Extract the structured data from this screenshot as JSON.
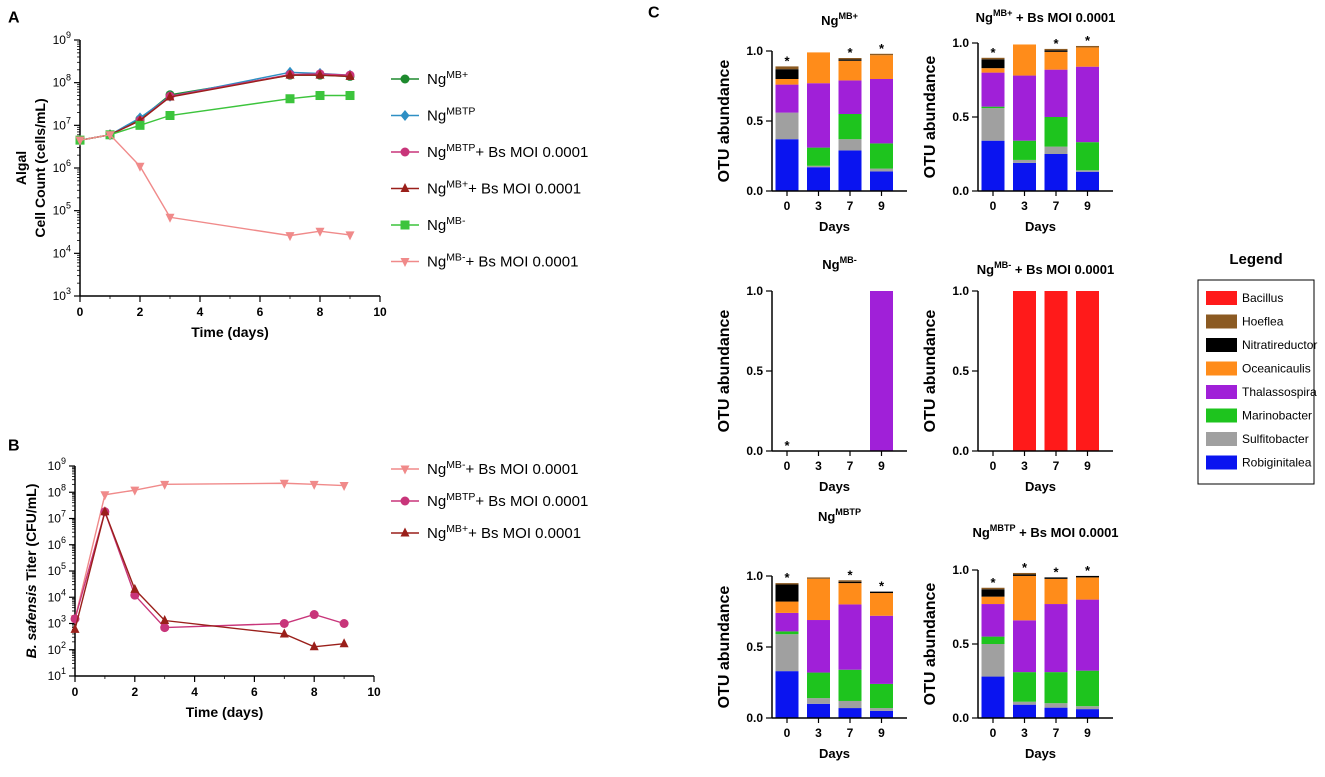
{
  "chart_data": [
    {
      "id": "A",
      "panel_label": "A",
      "type": "line",
      "ylabel_line1": "Algal",
      "ylabel_line2": "Cell Count (cells/mL)",
      "xlabel": "Time (days)",
      "yscale": "log",
      "ylim": [
        1000,
        1000000000
      ],
      "xlim": [
        0,
        10
      ],
      "xticks": [
        "0",
        "2",
        "4",
        "6",
        "8",
        "10"
      ],
      "yticks": [
        {
          "base": "10",
          "exp": "3"
        },
        {
          "base": "10",
          "exp": "4"
        },
        {
          "base": "10",
          "exp": "5"
        },
        {
          "base": "10",
          "exp": "6"
        },
        {
          "base": "10",
          "exp": "7"
        },
        {
          "base": "10",
          "exp": "8"
        },
        {
          "base": "10",
          "exp": "9"
        }
      ],
      "series": [
        {
          "name": "NgMB+",
          "label": "Ng",
          "sup": "MB+",
          "suffix": "",
          "color": "#1e8a2e",
          "marker": "circle",
          "x": [
            0,
            1,
            2,
            3,
            7,
            8,
            9
          ],
          "values": [
            4500000,
            6000000,
            14000000,
            52000000,
            150000000,
            150000000,
            140000000
          ]
        },
        {
          "name": "NgMBTP",
          "label": "Ng",
          "sup": "MBTP",
          "suffix": "",
          "color": "#2e8fc4",
          "marker": "diamond",
          "x": [
            0,
            1,
            2,
            3,
            7,
            8,
            9
          ],
          "values": [
            4500000,
            6000000,
            15000000,
            48000000,
            175000000,
            165000000,
            150000000
          ]
        },
        {
          "name": "NgMBTP+ Bs MOI 0.0001",
          "label": "Ng",
          "sup": "MBTP",
          "suffix": "+ Bs MOI 0.0001",
          "color": "#c8357a",
          "marker": "circle",
          "x": [
            0,
            1,
            2,
            3,
            7,
            8,
            9
          ],
          "values": [
            4500000,
            6000000,
            13000000,
            48000000,
            155000000,
            160000000,
            150000000
          ]
        },
        {
          "name": "NgMB++ Bs MOI 0.0001",
          "label": "Ng",
          "sup": "MB+",
          "suffix": "+ Bs MOI 0.0001",
          "color": "#9a1f1a",
          "marker": "triangle",
          "x": [
            0,
            1,
            2,
            3,
            7,
            8,
            9
          ],
          "values": [
            4500000,
            6000000,
            13000000,
            46000000,
            150000000,
            150000000,
            140000000
          ]
        },
        {
          "name": "NgMB-",
          "label": "Ng",
          "sup": "MB-",
          "suffix": "",
          "color": "#3cc43c",
          "marker": "square",
          "x": [
            0,
            1,
            2,
            3,
            7,
            8,
            9
          ],
          "values": [
            4500000,
            6000000,
            10000000,
            17000000,
            42000000,
            50000000,
            50000000
          ]
        },
        {
          "name": "NgMB-+ Bs MOI 0.0001",
          "label": "Ng",
          "sup": "MB-",
          "suffix": "+ Bs MOI 0.0001",
          "color": "#f08a8a",
          "marker": "triangle-down",
          "x": [
            0,
            1,
            2,
            3,
            7,
            8,
            9
          ],
          "values": [
            4500000,
            6000000,
            1100000,
            70000,
            26000,
            33000,
            27000
          ]
        }
      ]
    },
    {
      "id": "B",
      "panel_label": "B",
      "type": "line",
      "ylabel_italic": "B. safensis",
      "ylabel_rest": " Titer (CFU/mL)",
      "xlabel": "Time (days)",
      "yscale": "log",
      "ylim": [
        10,
        1000000000
      ],
      "xlim": [
        0,
        10
      ],
      "xticks": [
        "0",
        "2",
        "4",
        "6",
        "8",
        "10"
      ],
      "yticks": [
        {
          "base": "10",
          "exp": "1"
        },
        {
          "base": "10",
          "exp": "2"
        },
        {
          "base": "10",
          "exp": "3"
        },
        {
          "base": "10",
          "exp": "4"
        },
        {
          "base": "10",
          "exp": "5"
        },
        {
          "base": "10",
          "exp": "6"
        },
        {
          "base": "10",
          "exp": "7"
        },
        {
          "base": "10",
          "exp": "8"
        },
        {
          "base": "10",
          "exp": "9"
        }
      ],
      "series": [
        {
          "name": "NgMB-+ Bs MOI 0.0001",
          "label": "Ng",
          "sup": "MB-",
          "suffix": "+ Bs MOI 0.0001",
          "color": "#f08a8a",
          "marker": "triangle-down",
          "x": [
            0,
            1,
            2,
            3,
            7,
            8,
            9
          ],
          "values": [
            1500,
            80000000,
            120000000,
            200000000,
            220000000,
            200000000,
            180000000
          ]
        },
        {
          "name": "NgMBTP+ Bs MOI 0.0001",
          "label": "Ng",
          "sup": "MBTP",
          "suffix": "+ Bs MOI 0.0001",
          "color": "#c8357a",
          "marker": "circle",
          "x": [
            0,
            1,
            2,
            3,
            7,
            8,
            9
          ],
          "values": [
            1500,
            18000000,
            12000,
            700,
            1000,
            2200,
            1000
          ]
        },
        {
          "name": "NgMB++ Bs MOI 0.0001",
          "label": "Ng",
          "sup": "MB+",
          "suffix": "+ Bs MOI 0.0001",
          "color": "#9a1f1a",
          "marker": "triangle",
          "x": [
            0,
            1,
            2,
            3,
            7,
            8,
            9
          ],
          "values": [
            600,
            18000000,
            20000,
            1300,
            400,
            130,
            170
          ]
        }
      ]
    },
    {
      "id": "C",
      "panel_label": "C",
      "type": "bar",
      "stacked": true,
      "ylabel": "OTU abundance",
      "xlabel": "Days",
      "categories": [
        "0",
        "3",
        "7",
        "9"
      ],
      "yticks": [
        "0.0",
        "0.5",
        "1.0"
      ],
      "ylim": [
        0,
        1
      ],
      "taxa": [
        "Robiginitalea",
        "Sulfitobacter",
        "Marinobacter",
        "Thalassospira",
        "Oceanicaulis",
        "Nitratireductor",
        "Hoeflea",
        "Bacillus"
      ],
      "colors": {
        "Bacillus": "#ff1a1a",
        "Hoeflea": "#8b5a22",
        "Nitratireductor": "#000000",
        "Oceanicaulis": "#ff8c1a",
        "Thalassospira": "#a020d8",
        "Marinobacter": "#1ec41e",
        "Sulfitobacter": "#a0a0a0",
        "Robiginitalea": "#0a14f0"
      },
      "legend": {
        "title": "Legend",
        "items": [
          "Bacillus",
          "Hoeflea",
          "Nitratireductor",
          "Oceanicaulis",
          "Thalassospira",
          "Marinobacter",
          "Sulfitobacter",
          "Robiginitalea"
        ]
      },
      "subplots": [
        {
          "key": "mbplus",
          "title_main": "Ng",
          "title_sup": "MB+",
          "title_suffix": "",
          "stars": [
            true,
            false,
            true,
            true
          ],
          "bars": [
            {
              "Robiginitalea": 0.37,
              "Sulfitobacter": 0.19,
              "Marinobacter": 0.0,
              "Thalassospira": 0.2,
              "Oceanicaulis": 0.04,
              "Nitratireductor": 0.07,
              "Hoeflea": 0.02,
              "Bacillus": 0.0
            },
            {
              "Robiginitalea": 0.17,
              "Sulfitobacter": 0.01,
              "Marinobacter": 0.13,
              "Thalassospira": 0.46,
              "Oceanicaulis": 0.22,
              "Nitratireductor": 0.0,
              "Hoeflea": 0.0,
              "Bacillus": 0.0
            },
            {
              "Robiginitalea": 0.29,
              "Sulfitobacter": 0.08,
              "Marinobacter": 0.18,
              "Thalassospira": 0.24,
              "Oceanicaulis": 0.14,
              "Nitratireductor": 0.01,
              "Hoeflea": 0.01,
              "Bacillus": 0.0
            },
            {
              "Robiginitalea": 0.14,
              "Sulfitobacter": 0.02,
              "Marinobacter": 0.18,
              "Thalassospira": 0.46,
              "Oceanicaulis": 0.17,
              "Nitratireductor": 0.0,
              "Hoeflea": 0.01,
              "Bacillus": 0.0
            }
          ]
        },
        {
          "key": "mbplus_bs",
          "title_main": "Ng",
          "title_sup": "MB+",
          "title_suffix": " + Bs MOI 0.0001",
          "stars": [
            true,
            false,
            true,
            true
          ],
          "bars": [
            {
              "Robiginitalea": 0.34,
              "Sulfitobacter": 0.22,
              "Marinobacter": 0.01,
              "Thalassospira": 0.23,
              "Oceanicaulis": 0.03,
              "Nitratireductor": 0.06,
              "Hoeflea": 0.01,
              "Bacillus": 0.0
            },
            {
              "Robiginitalea": 0.19,
              "Sulfitobacter": 0.02,
              "Marinobacter": 0.13,
              "Thalassospira": 0.44,
              "Oceanicaulis": 0.21,
              "Nitratireductor": 0.0,
              "Hoeflea": 0.0,
              "Bacillus": 0.0
            },
            {
              "Robiginitalea": 0.25,
              "Sulfitobacter": 0.05,
              "Marinobacter": 0.2,
              "Thalassospira": 0.32,
              "Oceanicaulis": 0.12,
              "Nitratireductor": 0.01,
              "Hoeflea": 0.01,
              "Bacillus": 0.0
            },
            {
              "Robiginitalea": 0.13,
              "Sulfitobacter": 0.01,
              "Marinobacter": 0.19,
              "Thalassospira": 0.51,
              "Oceanicaulis": 0.13,
              "Nitratireductor": 0.0,
              "Hoeflea": 0.01,
              "Bacillus": 0.0
            }
          ]
        },
        {
          "key": "mbminus",
          "title_main": "Ng",
          "title_sup": "MB-",
          "title_suffix": "",
          "stars": [
            true,
            false,
            false,
            false
          ],
          "bars": [
            {
              "Robiginitalea": 0,
              "Sulfitobacter": 0,
              "Marinobacter": 0,
              "Thalassospira": 0,
              "Oceanicaulis": 0,
              "Nitratireductor": 0,
              "Hoeflea": 0,
              "Bacillus": 0
            },
            {
              "Robiginitalea": 0,
              "Sulfitobacter": 0,
              "Marinobacter": 0,
              "Thalassospira": 0,
              "Oceanicaulis": 0,
              "Nitratireductor": 0,
              "Hoeflea": 0,
              "Bacillus": 0
            },
            {
              "Robiginitalea": 0,
              "Sulfitobacter": 0,
              "Marinobacter": 0,
              "Thalassospira": 0,
              "Oceanicaulis": 0,
              "Nitratireductor": 0,
              "Hoeflea": 0,
              "Bacillus": 0
            },
            {
              "Robiginitalea": 0,
              "Sulfitobacter": 0,
              "Marinobacter": 0,
              "Thalassospira": 1.0,
              "Oceanicaulis": 0,
              "Nitratireductor": 0,
              "Hoeflea": 0,
              "Bacillus": 0
            }
          ]
        },
        {
          "key": "mbminus_bs",
          "title_main": "Ng",
          "title_sup": "MB-",
          "title_suffix": " + Bs MOI 0.0001",
          "stars": [
            false,
            false,
            false,
            false
          ],
          "bars": [
            {
              "Robiginitalea": 0,
              "Sulfitobacter": 0,
              "Marinobacter": 0,
              "Thalassospira": 0,
              "Oceanicaulis": 0,
              "Nitratireductor": 0,
              "Hoeflea": 0,
              "Bacillus": 0
            },
            {
              "Robiginitalea": 0,
              "Sulfitobacter": 0,
              "Marinobacter": 0,
              "Thalassospira": 0,
              "Oceanicaulis": 0,
              "Nitratireductor": 0,
              "Hoeflea": 0,
              "Bacillus": 1.0
            },
            {
              "Robiginitalea": 0,
              "Sulfitobacter": 0,
              "Marinobacter": 0,
              "Thalassospira": 0,
              "Oceanicaulis": 0,
              "Nitratireductor": 0,
              "Hoeflea": 0,
              "Bacillus": 1.0
            },
            {
              "Robiginitalea": 0,
              "Sulfitobacter": 0,
              "Marinobacter": 0,
              "Thalassospira": 0,
              "Oceanicaulis": 0,
              "Nitratireductor": 0,
              "Hoeflea": 0,
              "Bacillus": 1.0
            }
          ]
        },
        {
          "key": "mbtp",
          "title_main": "Ng",
          "title_sup": "MBTP",
          "title_suffix": "",
          "stars": [
            true,
            false,
            true,
            true
          ],
          "bars": [
            {
              "Robiginitalea": 0.33,
              "Sulfitobacter": 0.26,
              "Marinobacter": 0.02,
              "Thalassospira": 0.13,
              "Oceanicaulis": 0.08,
              "Nitratireductor": 0.12,
              "Hoeflea": 0.01,
              "Bacillus": 0.0
            },
            {
              "Robiginitalea": 0.1,
              "Sulfitobacter": 0.04,
              "Marinobacter": 0.18,
              "Thalassospira": 0.37,
              "Oceanicaulis": 0.29,
              "Nitratireductor": 0.0,
              "Hoeflea": 0.01,
              "Bacillus": 0.0
            },
            {
              "Robiginitalea": 0.07,
              "Sulfitobacter": 0.05,
              "Marinobacter": 0.22,
              "Thalassospira": 0.46,
              "Oceanicaulis": 0.15,
              "Nitratireductor": 0.01,
              "Hoeflea": 0.01,
              "Bacillus": 0.0
            },
            {
              "Robiginitalea": 0.05,
              "Sulfitobacter": 0.02,
              "Marinobacter": 0.17,
              "Thalassospira": 0.48,
              "Oceanicaulis": 0.16,
              "Nitratireductor": 0.01,
              "Hoeflea": 0.0,
              "Bacillus": 0.0
            }
          ]
        },
        {
          "key": "mbtp_bs",
          "title_main": "Ng",
          "title_sup": "MBTP",
          "title_suffix": " + Bs MOI 0.0001",
          "stars": [
            true,
            true,
            true,
            true
          ],
          "bars": [
            {
              "Robiginitalea": 0.28,
              "Sulfitobacter": 0.22,
              "Marinobacter": 0.05,
              "Thalassospira": 0.22,
              "Oceanicaulis": 0.05,
              "Nitratireductor": 0.05,
              "Hoeflea": 0.01,
              "Bacillus": 0.0
            },
            {
              "Robiginitalea": 0.09,
              "Sulfitobacter": 0.02,
              "Marinobacter": 0.2,
              "Thalassospira": 0.35,
              "Oceanicaulis": 0.3,
              "Nitratireductor": 0.01,
              "Hoeflea": 0.01,
              "Bacillus": 0.0
            },
            {
              "Robiginitalea": 0.07,
              "Sulfitobacter": 0.03,
              "Marinobacter": 0.21,
              "Thalassospira": 0.46,
              "Oceanicaulis": 0.17,
              "Nitratireductor": 0.01,
              "Hoeflea": 0.0,
              "Bacillus": 0.0
            },
            {
              "Robiginitalea": 0.06,
              "Sulfitobacter": 0.02,
              "Marinobacter": 0.24,
              "Thalassospira": 0.48,
              "Oceanicaulis": 0.15,
              "Nitratireductor": 0.01,
              "Hoeflea": 0.0,
              "Bacillus": 0.0
            }
          ]
        }
      ]
    }
  ]
}
